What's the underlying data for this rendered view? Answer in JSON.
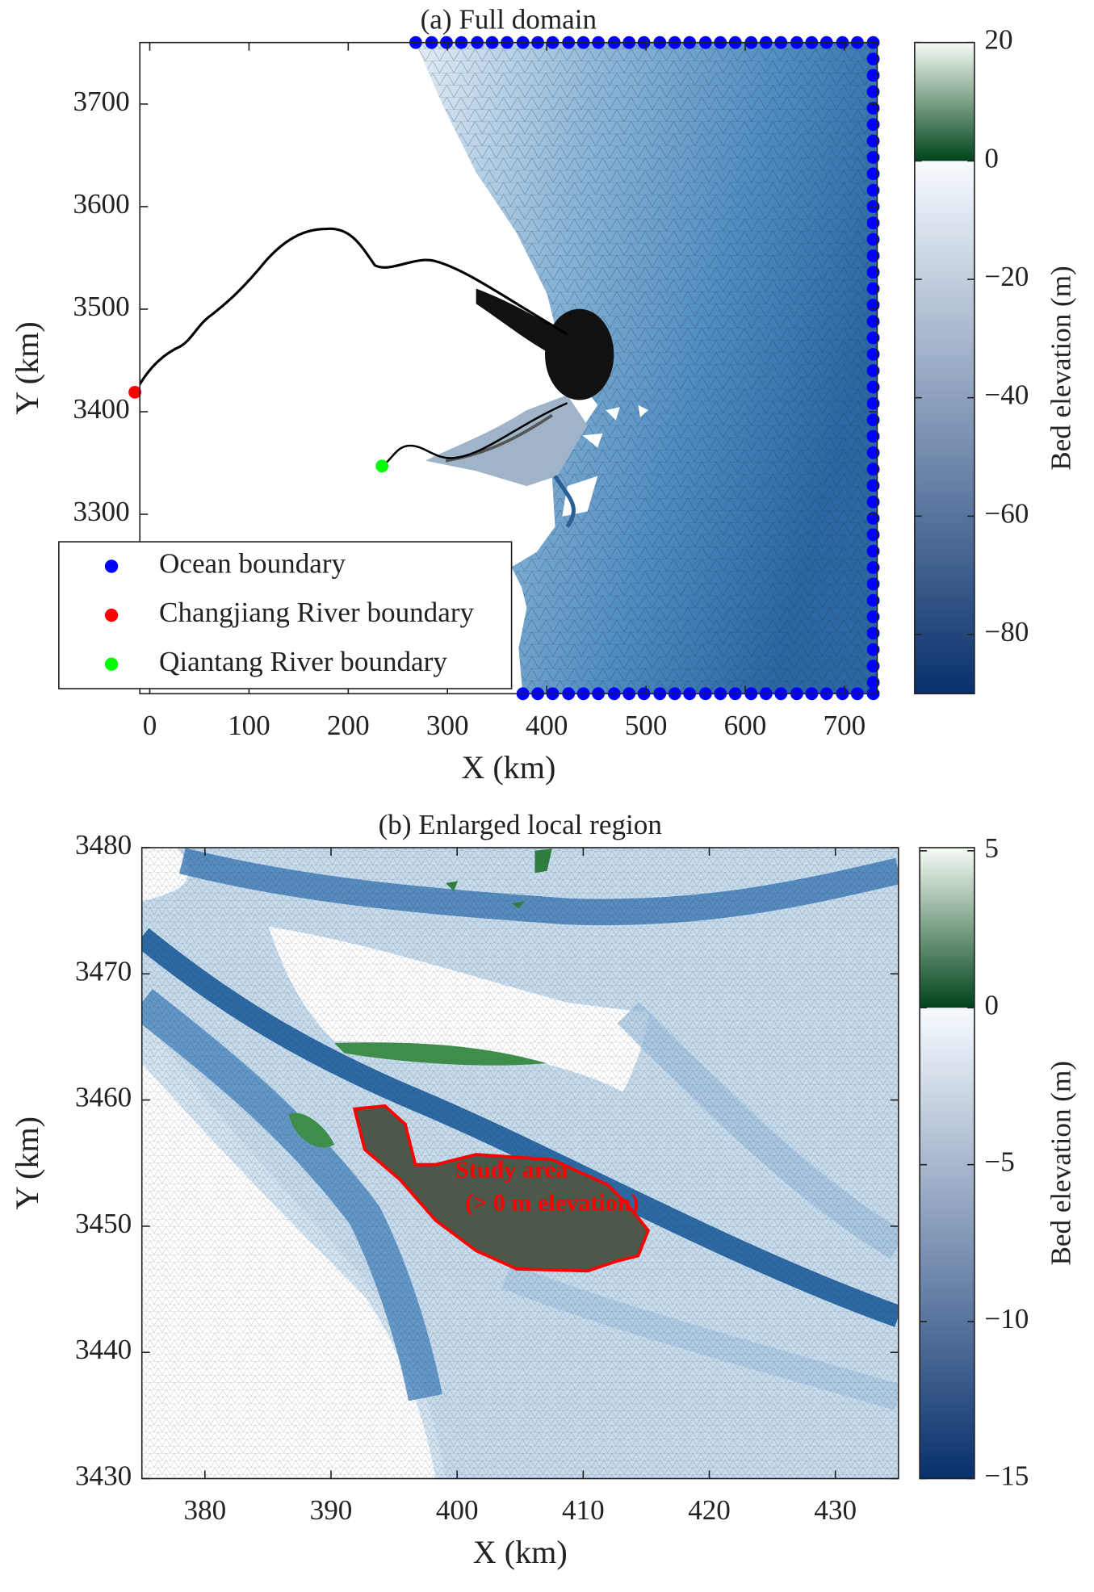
{
  "chart_data": [
    {
      "type": "map",
      "title": "(a) Full domain",
      "xlabel": "X (km)",
      "ylabel": "Y (km)",
      "xlim": [
        -10,
        733
      ],
      "ylim": [
        3125,
        3760
      ],
      "xticks": [
        0,
        100,
        200,
        300,
        400,
        500,
        600,
        700
      ],
      "yticks": [
        3300,
        3400,
        3500,
        3600,
        3700
      ],
      "legend": "lower left",
      "colorbar": {
        "label": "Bed elevation (m)",
        "clim": [
          -90,
          20
        ],
        "ticks": [
          {
            "value": -80,
            "label": "−80"
          },
          {
            "value": -60,
            "label": "−60"
          },
          {
            "value": -40,
            "label": "−40"
          },
          {
            "value": -20,
            "label": "−20"
          },
          0,
          20
        ],
        "colors": {
          "land": [
            "#00441b",
            "#f7fcf5"
          ],
          "water": [
            "#08306b",
            "#f7fbff"
          ]
        }
      },
      "series": [
        {
          "name": "Ocean boundary",
          "color": "#0000ff",
          "x": [
            268,
            284,
            299,
            314,
            330,
            345,
            360,
            376,
            391,
            406,
            422,
            437,
            452,
            468,
            483,
            498,
            514,
            529,
            544,
            560,
            575,
            590,
            606,
            621,
            636,
            652,
            667,
            682,
            698,
            713,
            729,
            729,
            729,
            729,
            729,
            729,
            729,
            729,
            729,
            729,
            729,
            729,
            729,
            729,
            729,
            729,
            729,
            729,
            729,
            729,
            729,
            729,
            729,
            729,
            729,
            729,
            729,
            729,
            729,
            729,
            729,
            729,
            729,
            729,
            729,
            729,
            729,
            729,
            729,
            729,
            729,
            713,
            698,
            682,
            667,
            652,
            636,
            621,
            606,
            590,
            575,
            560,
            544,
            529,
            514,
            498,
            483,
            468,
            452,
            437,
            422,
            406,
            391,
            376
          ],
          "y": [
            3760,
            3760,
            3760,
            3760,
            3760,
            3760,
            3760,
            3760,
            3760,
            3760,
            3760,
            3760,
            3760,
            3760,
            3760,
            3760,
            3760,
            3760,
            3760,
            3760,
            3760,
            3760,
            3760,
            3760,
            3760,
            3760,
            3760,
            3760,
            3760,
            3760,
            3760,
            3744,
            3728,
            3712,
            3696,
            3680,
            3664,
            3648,
            3632,
            3616,
            3600,
            3584,
            3568,
            3552,
            3536,
            3520,
            3504,
            3488,
            3472,
            3456,
            3440,
            3424,
            3408,
            3392,
            3376,
            3360,
            3344,
            3328,
            3312,
            3296,
            3280,
            3264,
            3248,
            3232,
            3216,
            3200,
            3184,
            3168,
            3152,
            3136,
            3125,
            3125,
            3125,
            3125,
            3125,
            3125,
            3125,
            3125,
            3125,
            3125,
            3125,
            3125,
            3125,
            3125,
            3125,
            3125,
            3125,
            3125,
            3125,
            3125,
            3125,
            3125,
            3125,
            3125
          ]
        },
        {
          "name": "Changjiang River boundary",
          "color": "#ff0000",
          "x": [
            -15
          ],
          "y": [
            3419
          ]
        },
        {
          "name": "Qiantang River boundary",
          "color": "#00ff00",
          "x": [
            234
          ],
          "y": [
            3347
          ]
        }
      ]
    },
    {
      "type": "map",
      "title": "(b) Enlarged local region",
      "xlabel": "X (km)",
      "ylabel": "Y (km)",
      "xlim": [
        375,
        435
      ],
      "ylim": [
        3430,
        3480
      ],
      "xticks": [
        380,
        390,
        400,
        410,
        420,
        430
      ],
      "yticks": [
        3430,
        3440,
        3450,
        3460,
        3470,
        3480
      ],
      "annotation": [
        "Study area",
        "(> 0 m elevation)"
      ],
      "annotation_color": "#ff0000",
      "colorbar": {
        "label": "Bed elevation (m)",
        "clim": [
          -15,
          5.1
        ],
        "ticks": [
          {
            "value": -15,
            "label": "−15"
          },
          {
            "value": -10,
            "label": "−10"
          },
          {
            "value": -5,
            "label": "−5"
          },
          0,
          5
        ],
        "colors": {
          "land": [
            "#00441b",
            "#f7fcf5"
          ],
          "water": [
            "#08306b",
            "#f7fbff"
          ]
        }
      },
      "series": []
    }
  ]
}
